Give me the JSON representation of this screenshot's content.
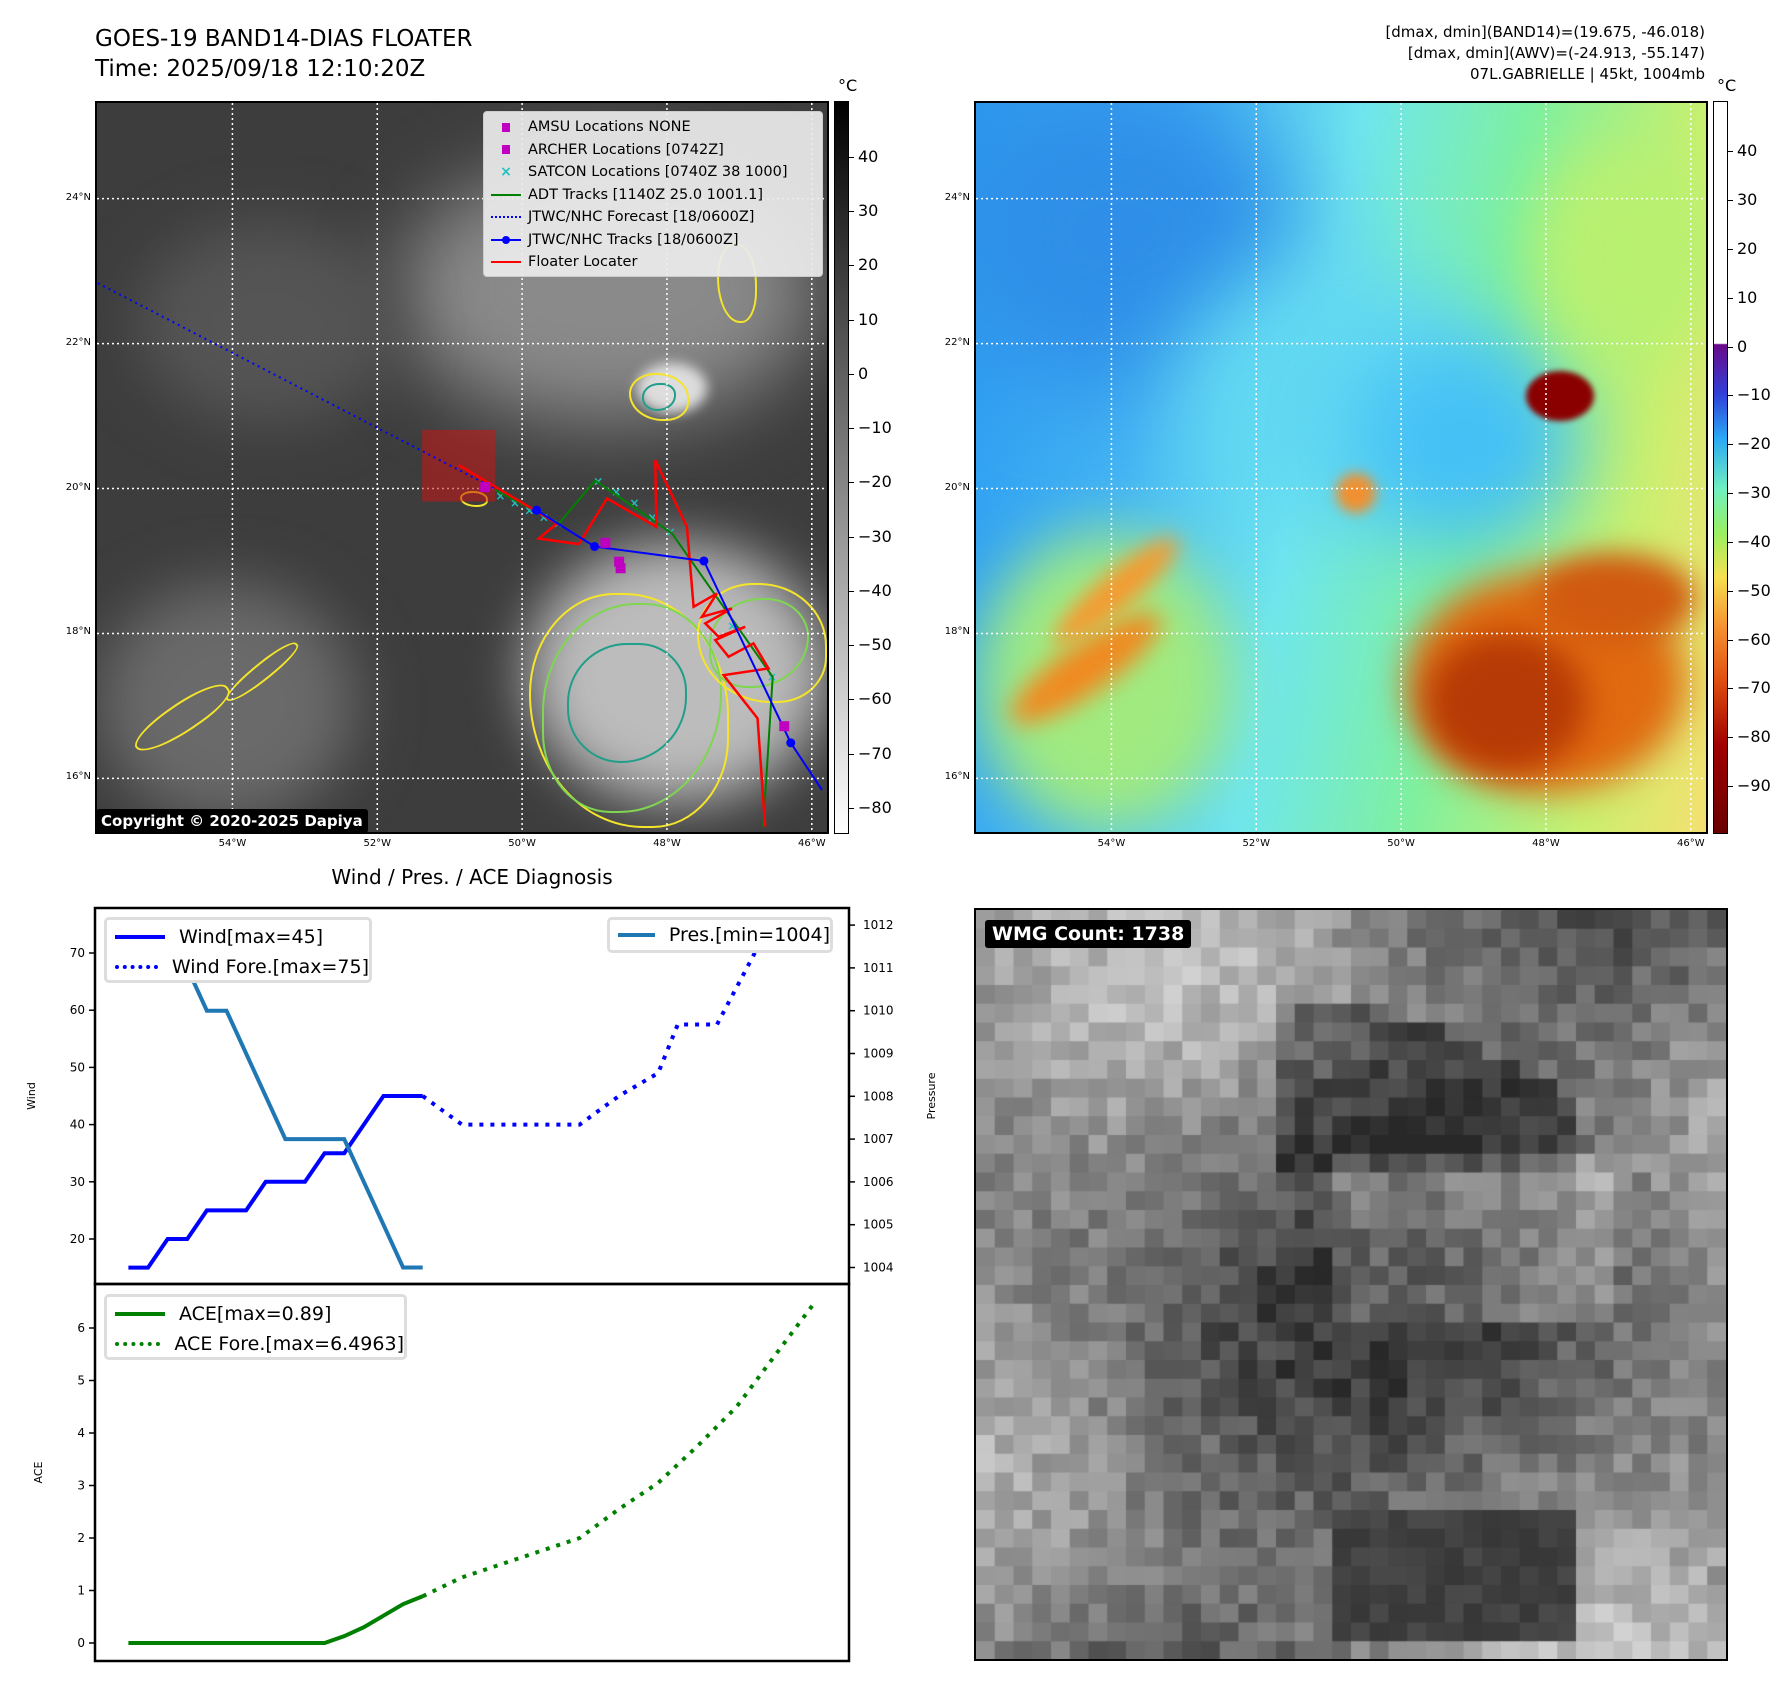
{
  "header": {
    "title": "GOES-19 BAND14-DIAS FLOATER",
    "time": "Time: 2025/09/18 12:10:20Z",
    "info_lines": [
      "[dmax, dmin](BAND14)=(19.675, -46.018)",
      "[dmax, dmin](AWV)=(-24.913, -55.147)",
      "07L.GABRIELLE | 45kt, 1004mb"
    ]
  },
  "map": {
    "extent": {
      "lon": [
        -55.87,
        -45.79
      ],
      "lat": [
        15.26,
        25.32
      ]
    },
    "lat_ticks": [
      {
        "v": 24,
        "label": "24°N"
      },
      {
        "v": 22,
        "label": "22°N"
      },
      {
        "v": 20,
        "label": "20°N"
      },
      {
        "v": 18,
        "label": "18°N"
      },
      {
        "v": 16,
        "label": "16°N"
      }
    ],
    "lon_ticks": [
      {
        "v": -54,
        "label": "54°W"
      },
      {
        "v": -52,
        "label": "52°W"
      },
      {
        "v": -50,
        "label": "50°W"
      },
      {
        "v": -48,
        "label": "48°W"
      },
      {
        "v": -46,
        "label": "46°W"
      }
    ],
    "copyright": "Copyright © 2020-2025 Dapiya",
    "legend": [
      {
        "label": "AMSU Locations NONE",
        "symbol": "square",
        "color": "#c000c0"
      },
      {
        "label": "ARCHER Locations [0742Z]",
        "symbol": "square",
        "color": "#c000c0"
      },
      {
        "label": "SATCON Locations [0740Z 38 1000]",
        "symbol": "x",
        "color": "#20c0c0"
      },
      {
        "label": "ADT Tracks [1140Z 25.0 1001.1]",
        "symbol": "line",
        "color": "#008000"
      },
      {
        "label": "JTWC/NHC Forecast [18/0600Z]",
        "symbol": "dotted",
        "color": "#0000ff"
      },
      {
        "label": "JTWC/NHC Tracks [18/0600Z]",
        "symbol": "line-dot",
        "color": "#0000ff"
      },
      {
        "label": "Floater Locater",
        "symbol": "line",
        "color": "#ff0000"
      }
    ],
    "jtwc_track": [
      [
        -45.86,
        15.84
      ],
      [
        -46.29,
        16.49
      ],
      [
        -47.49,
        19.0
      ],
      [
        -49.0,
        19.2
      ],
      [
        -49.8,
        19.7
      ]
    ],
    "jtwc_forecast": [
      [
        -49.8,
        19.7
      ],
      [
        -55.87,
        22.84
      ]
    ],
    "adt_track": [
      [
        -46.67,
        15.33
      ],
      [
        -46.54,
        17.4
      ],
      [
        -47.93,
        19.38
      ],
      [
        -48.99,
        20.11
      ],
      [
        -49.49,
        19.52
      ],
      [
        -50.37,
        19.98
      ]
    ],
    "satcon_points": [
      [
        -50.3,
        19.9
      ],
      [
        -50.1,
        19.8
      ],
      [
        -49.9,
        19.7
      ],
      [
        -49.7,
        19.6
      ],
      [
        -49.5,
        19.52
      ],
      [
        -48.95,
        20.1
      ],
      [
        -48.7,
        19.95
      ],
      [
        -48.45,
        19.8
      ],
      [
        -48.2,
        19.6
      ],
      [
        -47.95,
        19.4
      ],
      [
        -47.1,
        18.1
      ],
      [
        -46.55,
        17.4
      ]
    ],
    "archer_points": [
      [
        -48.85,
        19.25
      ],
      [
        -48.66,
        18.99
      ],
      [
        -48.64,
        18.9
      ],
      [
        -46.38,
        16.72
      ],
      [
        -50.51,
        20.02
      ]
    ],
    "floater_track": [
      [
        -46.644,
        15.333
      ],
      [
        -46.749,
        16.828
      ],
      [
        -47.218,
        17.425
      ],
      [
        -46.598,
        17.517
      ],
      [
        -46.805,
        17.862
      ],
      [
        -47.149,
        17.678
      ],
      [
        -47.333,
        17.908
      ],
      [
        -46.92,
        18.092
      ],
      [
        -47.287,
        17.954
      ],
      [
        -47.471,
        18.138
      ],
      [
        -47.103,
        18.345
      ],
      [
        -47.517,
        18.23
      ],
      [
        -47.31,
        18.552
      ],
      [
        -47.632,
        18.368
      ],
      [
        -47.724,
        19.471
      ],
      [
        -48.161,
        20.391
      ],
      [
        -48.147,
        19.471
      ],
      [
        -48.828,
        19.862
      ],
      [
        -49.218,
        19.232
      ],
      [
        -49.77,
        19.31
      ],
      [
        -49.517,
        19.517
      ],
      [
        -50.874,
        20.322
      ]
    ],
    "floater_box": {
      "lon": [
        -51.38,
        -50.37
      ],
      "lat": [
        19.82,
        20.81
      ]
    },
    "colorbar": {
      "unit": "°C",
      "range": [
        50.3,
        -84.8
      ],
      "ticks": [
        40,
        30,
        20,
        10,
        0,
        -10,
        -20,
        -30,
        -40,
        -50,
        -60,
        -70,
        -80
      ],
      "labels": [
        "40",
        "30",
        "20",
        "10",
        "0",
        "−10",
        "−20",
        "−30",
        "−40",
        "−50",
        "−60",
        "−70",
        "−80"
      ]
    }
  },
  "map2": {
    "colorbar": {
      "unit": "°C",
      "range": [
        50.3,
        -99.8
      ],
      "ticks": [
        40,
        30,
        20,
        10,
        0,
        -10,
        -20,
        -30,
        -40,
        -50,
        -60,
        -70,
        -80,
        -90
      ],
      "labels": [
        "40",
        "30",
        "20",
        "10",
        "0",
        "−10",
        "−20",
        "−30",
        "−40",
        "−50",
        "−60",
        "−70",
        "−80",
        "−90"
      ]
    }
  },
  "wmg": {
    "badge": "WMG Count: 1738"
  },
  "chart_data": {
    "type": "line",
    "title": "Wind / Pres. / ACE Diagnosis",
    "x_unit": "hours relative to analysis",
    "xlim": [
      -100,
      130
    ],
    "upper": {
      "ylabel": "Wind",
      "ylim": [
        13,
        78
      ],
      "yticks": [
        20,
        30,
        40,
        50,
        60,
        70
      ],
      "y2label": "Pressure",
      "y2lim": [
        1003.7,
        1012.5
      ],
      "y2ticks": [
        1004,
        1005,
        1006,
        1007,
        1008,
        1009,
        1010,
        1011,
        1012
      ],
      "series": [
        {
          "name": "Wind[max=45]",
          "axis": "left",
          "style": "solid",
          "color": "#0000ff",
          "points": [
            [
              -90,
              15
            ],
            [
              -84,
              15
            ],
            [
              -78,
              20
            ],
            [
              -72,
              20
            ],
            [
              -66,
              25
            ],
            [
              -60,
              25
            ],
            [
              -54,
              25
            ],
            [
              -48,
              30
            ],
            [
              -42,
              30
            ],
            [
              -36,
              30
            ],
            [
              -30,
              35
            ],
            [
              -24,
              35
            ],
            [
              -18,
              40
            ],
            [
              -12,
              45
            ],
            [
              -6,
              45
            ],
            [
              0,
              45
            ]
          ]
        },
        {
          "name": "Wind Fore.[max=75]",
          "axis": "left",
          "style": "dotted",
          "color": "#0000ff",
          "points": [
            [
              0,
              45
            ],
            [
              12,
              40
            ],
            [
              48,
              40
            ],
            [
              60,
              45
            ],
            [
              72,
              49
            ],
            [
              78,
              57.5
            ],
            [
              90,
              57.5
            ],
            [
              102,
              70.5
            ],
            [
              114,
              70.5
            ],
            [
              120,
              75
            ]
          ]
        },
        {
          "name": "Pres.[min=1004]",
          "axis": "right",
          "style": "solid",
          "color": "#1f77b4",
          "points": [
            [
              -90,
              1012
            ],
            [
              -84,
              1012
            ],
            [
              -78,
              1011
            ],
            [
              -72,
              1011
            ],
            [
              -66,
              1010
            ],
            [
              -60,
              1010
            ],
            [
              -54,
              1009
            ],
            [
              -48,
              1008
            ],
            [
              -42,
              1007
            ],
            [
              -36,
              1007
            ],
            [
              -30,
              1007
            ],
            [
              -24,
              1007
            ],
            [
              -18,
              1006
            ],
            [
              -12,
              1005
            ],
            [
              -6,
              1004
            ],
            [
              0,
              1004
            ]
          ]
        }
      ]
    },
    "lower": {
      "ylabel": "ACE",
      "ylim": [
        -0.3,
        6.9
      ],
      "yticks": [
        0,
        1,
        2,
        3,
        4,
        5,
        6
      ],
      "series": [
        {
          "name": "ACE[max=0.89]",
          "style": "solid",
          "color": "#008000",
          "points": [
            [
              -90,
              0
            ],
            [
              -84,
              0
            ],
            [
              -78,
              0
            ],
            [
              -72,
              0
            ],
            [
              -66,
              0
            ],
            [
              -60,
              0
            ],
            [
              -54,
              0
            ],
            [
              -48,
              0
            ],
            [
              -42,
              0
            ],
            [
              -36,
              0
            ],
            [
              -30,
              0
            ],
            [
              -24,
              0.13
            ],
            [
              -18,
              0.3
            ],
            [
              -12,
              0.52
            ],
            [
              -6,
              0.74
            ],
            [
              0,
              0.89
            ]
          ]
        },
        {
          "name": "ACE Fore.[max=6.4963]",
          "style": "dotted",
          "color": "#008000",
          "points": [
            [
              0,
              0.89
            ],
            [
              12,
              1.25
            ],
            [
              24,
              1.5
            ],
            [
              36,
              1.75
            ],
            [
              48,
              2.0
            ],
            [
              60,
              2.55
            ],
            [
              72,
              3.05
            ],
            [
              84,
              3.75
            ],
            [
              96,
              4.5
            ],
            [
              108,
              5.5
            ],
            [
              120,
              6.4963
            ]
          ]
        }
      ]
    }
  }
}
